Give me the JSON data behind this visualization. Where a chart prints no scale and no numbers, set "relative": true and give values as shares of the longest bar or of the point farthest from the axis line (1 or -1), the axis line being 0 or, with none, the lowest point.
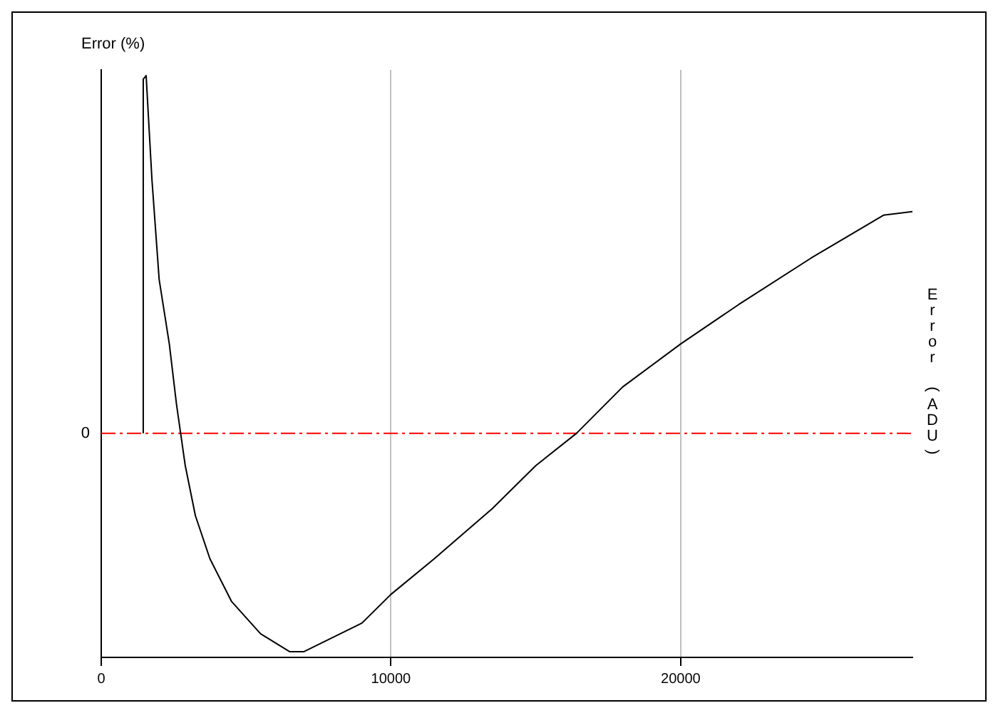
{
  "chart_data": {
    "type": "line",
    "ylabel": "Error (%)",
    "y2label": "Error (ADU)",
    "relative": true,
    "xlim": [
      0,
      28000
    ],
    "xticks": [
      0,
      10000,
      20000
    ],
    "grid": "x",
    "legend": false,
    "marker": "none",
    "line_style": "solid",
    "series": [
      {
        "color": "#000000",
        "x": [
          1450,
          1450,
          1550,
          1750,
          2000,
          2350,
          2600,
          2900,
          3250,
          3750,
          4500,
          5500,
          6500,
          7000,
          8000,
          9000,
          10000,
          11500,
          13500,
          15000,
          16400,
          18000,
          20000,
          22000,
          24500,
          27000,
          28000
        ],
        "values": [
          0,
          0.99,
          1,
          0.71,
          0.43,
          0.25,
          0.08,
          -0.09,
          -0.23,
          -0.35,
          -0.47,
          -0.56,
          -0.61,
          -0.61,
          -0.57,
          -0.53,
          -0.45,
          -0.35,
          -0.21,
          -0.09,
          0,
          0.13,
          0.25,
          0.36,
          0.49,
          0.61,
          0.62
        ]
      }
    ],
    "ref_lines": [
      {
        "axis": "y",
        "value": 0,
        "label": "0",
        "color": "#ff0000",
        "line_style": "dashed"
      }
    ]
  }
}
